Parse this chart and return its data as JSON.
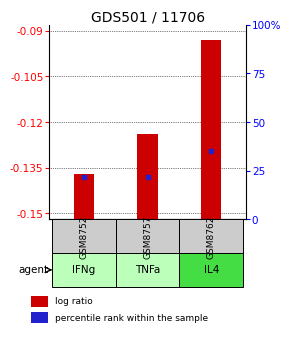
{
  "title": "GDS501 / 11706",
  "samples": [
    "GSM8752",
    "GSM8757",
    "GSM8762"
  ],
  "agents": [
    "IFNg",
    "TNFa",
    "IL4"
  ],
  "log_ratios": [
    -0.137,
    -0.124,
    -0.093
  ],
  "percentile_ranks": [
    0.22,
    0.22,
    0.35
  ],
  "ylim_left": [
    -0.152,
    -0.088
  ],
  "ylim_right": [
    0,
    100
  ],
  "yticks_left": [
    -0.15,
    -0.135,
    -0.12,
    -0.105,
    -0.09
  ],
  "yticks_right": [
    0,
    25,
    50,
    75,
    100
  ],
  "ytick_labels_left": [
    "-0.15",
    "-0.135",
    "-0.12",
    "-0.105",
    "-0.09"
  ],
  "ytick_labels_right": [
    "0",
    "25",
    "50",
    "75",
    "100%"
  ],
  "bar_color": "#cc0000",
  "dot_color": "#2222cc",
  "agent_bg": [
    "#bbffbb",
    "#bbffbb",
    "#44dd44"
  ],
  "sample_bg": "#cccccc",
  "title_fontsize": 10,
  "tick_fontsize": 7.5,
  "bar_width": 0.32,
  "legend_items": [
    "log ratio",
    "percentile rank within the sample"
  ]
}
